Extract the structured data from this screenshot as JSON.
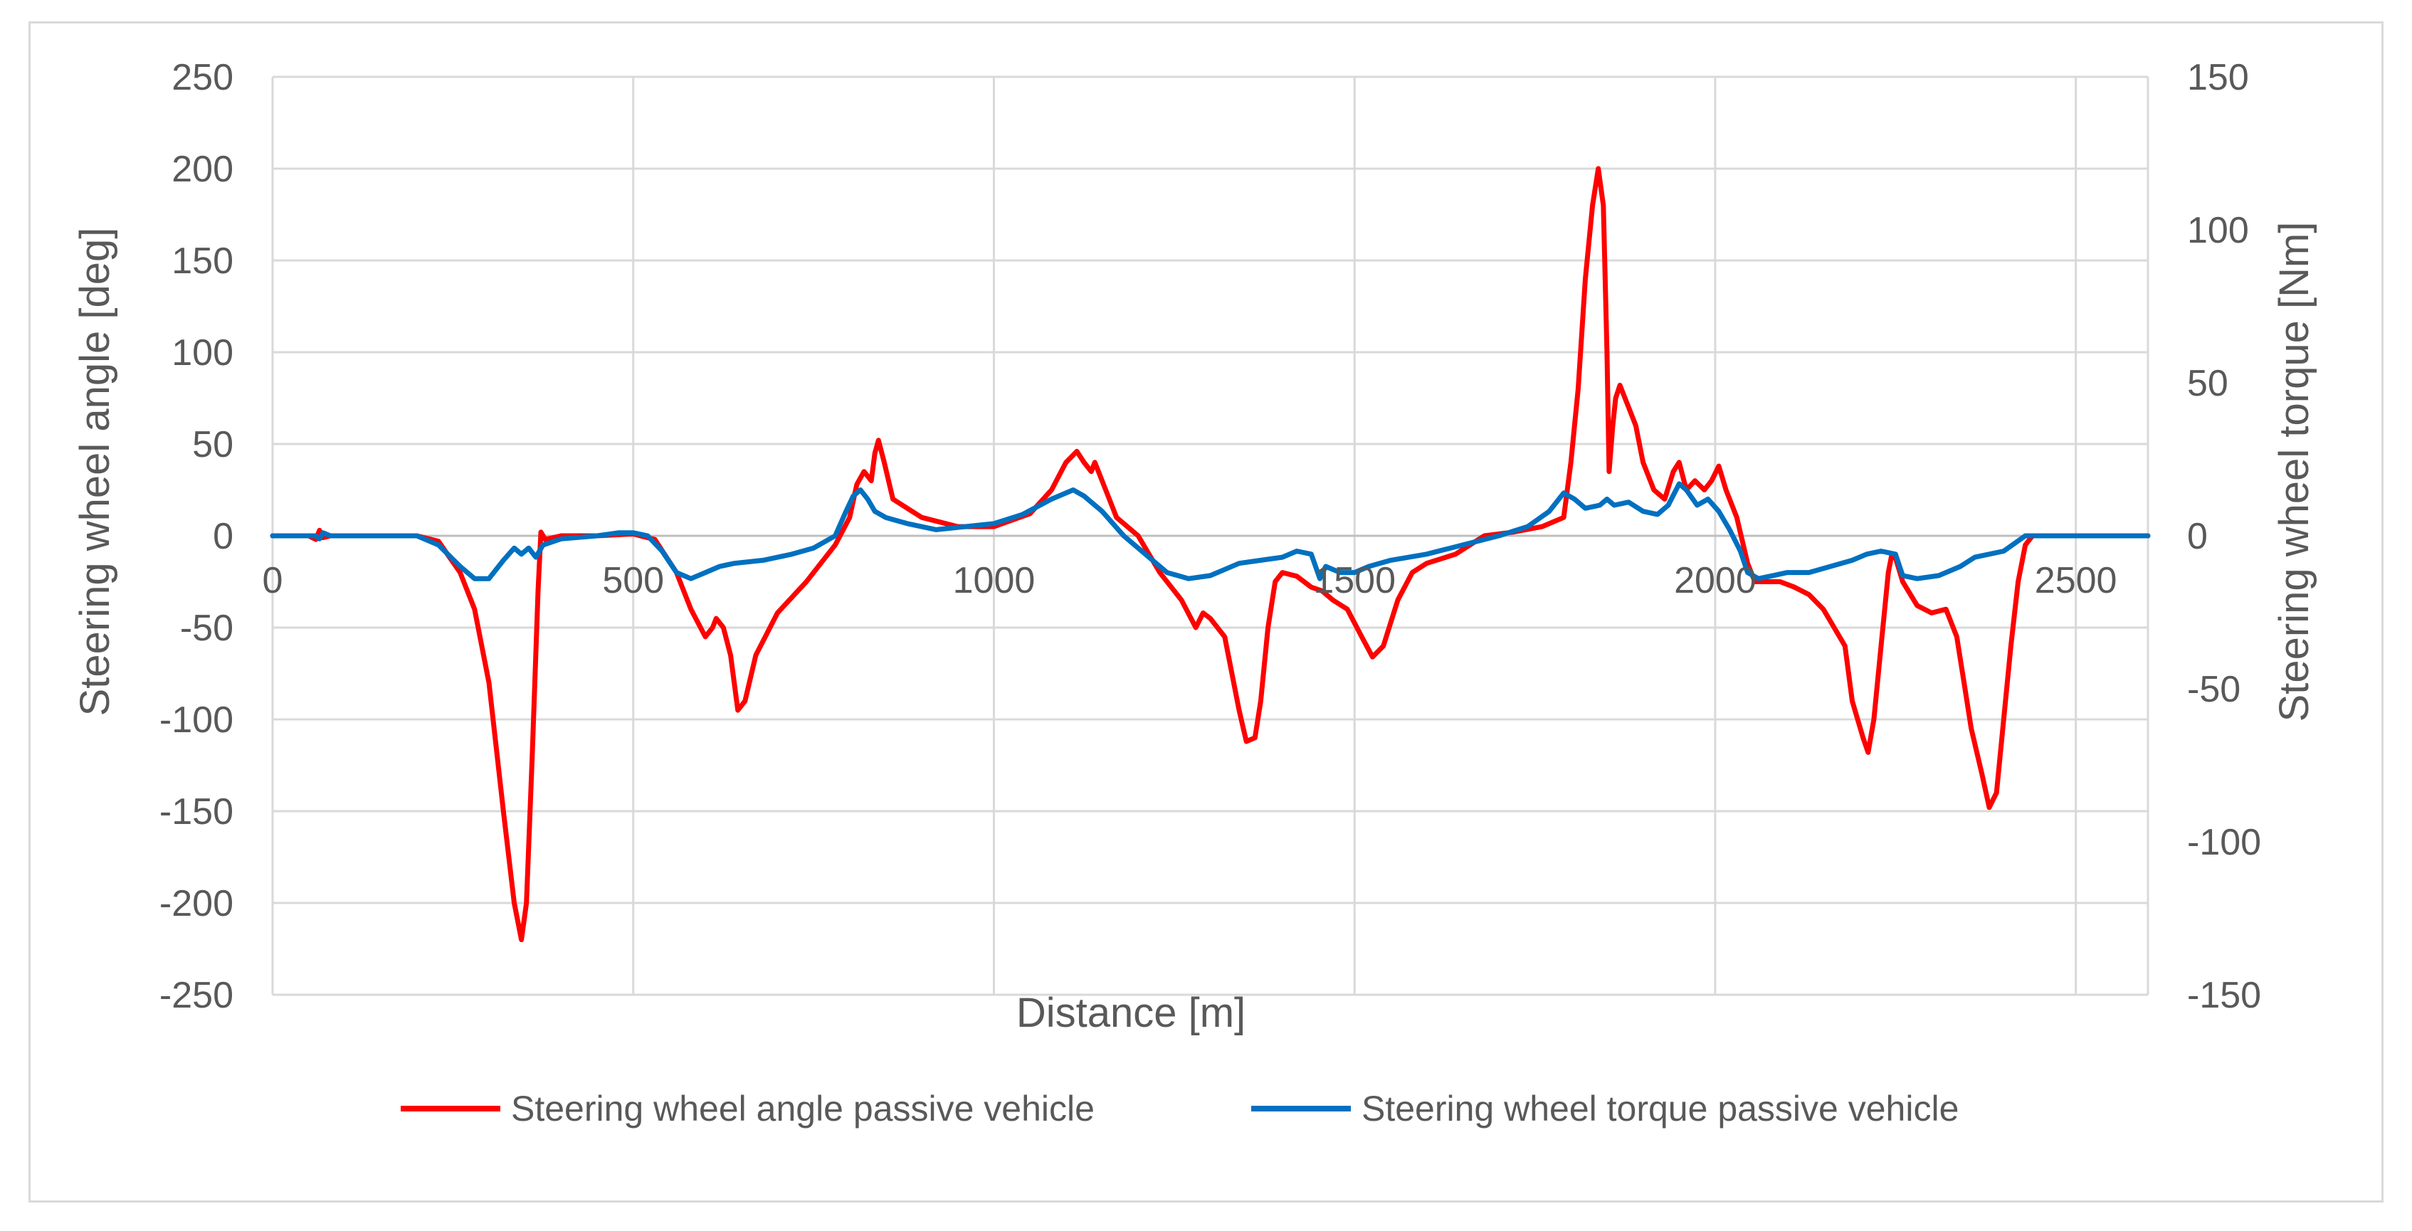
{
  "chart_data": {
    "type": "line",
    "title": "",
    "xlabel": "Distance [m]",
    "ylabel": "Steering wheel angle [deg]",
    "y2label": "Steering wheel torque [Nm]",
    "xlim": [
      0,
      2600
    ],
    "ylim": [
      -250,
      250
    ],
    "y2lim": [
      -150,
      150
    ],
    "x_ticks": [
      "0",
      "500",
      "1000",
      "1500",
      "2000",
      "2500"
    ],
    "y_ticks": [
      "250",
      "200",
      "150",
      "100",
      "50",
      "0",
      "-50",
      "-100",
      "-150",
      "-200",
      "-250"
    ],
    "y2_ticks": [
      "150",
      "100",
      "50",
      "0",
      "-50",
      "-100",
      "-150"
    ],
    "grid": true,
    "legend_position": "bottom",
    "series": [
      {
        "name": "Steering wheel angle passive vehicle",
        "axis": "left",
        "color": "#ff0000",
        "points": [
          [
            0,
            0
          ],
          [
            50,
            0
          ],
          [
            60,
            -2
          ],
          [
            65,
            3
          ],
          [
            70,
            -1
          ],
          [
            80,
            0
          ],
          [
            200,
            0
          ],
          [
            230,
            -3
          ],
          [
            260,
            -20
          ],
          [
            280,
            -40
          ],
          [
            300,
            -80
          ],
          [
            320,
            -150
          ],
          [
            335,
            -200
          ],
          [
            345,
            -220
          ],
          [
            352,
            -200
          ],
          [
            360,
            -120
          ],
          [
            368,
            -30
          ],
          [
            372,
            2
          ],
          [
            378,
            -2
          ],
          [
            400,
            0
          ],
          [
            450,
            0
          ],
          [
            500,
            1
          ],
          [
            530,
            -2
          ],
          [
            560,
            -20
          ],
          [
            580,
            -40
          ],
          [
            600,
            -55
          ],
          [
            610,
            -50
          ],
          [
            615,
            -45
          ],
          [
            625,
            -50
          ],
          [
            635,
            -65
          ],
          [
            645,
            -95
          ],
          [
            655,
            -90
          ],
          [
            670,
            -65
          ],
          [
            700,
            -42
          ],
          [
            740,
            -25
          ],
          [
            780,
            -5
          ],
          [
            800,
            10
          ],
          [
            810,
            28
          ],
          [
            820,
            35
          ],
          [
            830,
            30
          ],
          [
            835,
            45
          ],
          [
            840,
            52
          ],
          [
            848,
            40
          ],
          [
            860,
            20
          ],
          [
            880,
            15
          ],
          [
            900,
            10
          ],
          [
            950,
            5
          ],
          [
            1000,
            5
          ],
          [
            1050,
            12
          ],
          [
            1080,
            25
          ],
          [
            1100,
            40
          ],
          [
            1115,
            46
          ],
          [
            1125,
            40
          ],
          [
            1135,
            35
          ],
          [
            1140,
            40
          ],
          [
            1150,
            30
          ],
          [
            1170,
            10
          ],
          [
            1200,
            0
          ],
          [
            1230,
            -20
          ],
          [
            1260,
            -35
          ],
          [
            1280,
            -50
          ],
          [
            1290,
            -42
          ],
          [
            1300,
            -45
          ],
          [
            1320,
            -55
          ],
          [
            1330,
            -75
          ],
          [
            1340,
            -95
          ],
          [
            1350,
            -112
          ],
          [
            1362,
            -110
          ],
          [
            1370,
            -90
          ],
          [
            1380,
            -50
          ],
          [
            1390,
            -25
          ],
          [
            1400,
            -20
          ],
          [
            1420,
            -22
          ],
          [
            1440,
            -28
          ],
          [
            1455,
            -30
          ],
          [
            1470,
            -35
          ],
          [
            1490,
            -40
          ],
          [
            1510,
            -55
          ],
          [
            1525,
            -66
          ],
          [
            1540,
            -60
          ],
          [
            1560,
            -35
          ],
          [
            1580,
            -20
          ],
          [
            1600,
            -15
          ],
          [
            1640,
            -10
          ],
          [
            1680,
            0
          ],
          [
            1720,
            2
          ],
          [
            1760,
            5
          ],
          [
            1790,
            10
          ],
          [
            1800,
            40
          ],
          [
            1810,
            80
          ],
          [
            1820,
            140
          ],
          [
            1830,
            180
          ],
          [
            1838,
            200
          ],
          [
            1845,
            180
          ],
          [
            1850,
            100
          ],
          [
            1853,
            35
          ],
          [
            1858,
            60
          ],
          [
            1862,
            75
          ],
          [
            1868,
            82
          ],
          [
            1875,
            75
          ],
          [
            1880,
            70
          ],
          [
            1890,
            60
          ],
          [
            1900,
            40
          ],
          [
            1915,
            25
          ],
          [
            1930,
            20
          ],
          [
            1942,
            35
          ],
          [
            1950,
            40
          ],
          [
            1960,
            25
          ],
          [
            1972,
            30
          ],
          [
            1985,
            25
          ],
          [
            1995,
            30
          ],
          [
            2005,
            38
          ],
          [
            2015,
            25
          ],
          [
            2030,
            10
          ],
          [
            2045,
            -15
          ],
          [
            2055,
            -25
          ],
          [
            2075,
            -25
          ],
          [
            2090,
            -25
          ],
          [
            2110,
            -28
          ],
          [
            2130,
            -32
          ],
          [
            2150,
            -40
          ],
          [
            2165,
            -50
          ],
          [
            2180,
            -60
          ],
          [
            2190,
            -90
          ],
          [
            2205,
            -110
          ],
          [
            2212,
            -118
          ],
          [
            2220,
            -100
          ],
          [
            2230,
            -60
          ],
          [
            2240,
            -20
          ],
          [
            2245,
            -10
          ],
          [
            2250,
            -12
          ],
          [
            2260,
            -25
          ],
          [
            2280,
            -38
          ],
          [
            2300,
            -42
          ],
          [
            2320,
            -40
          ],
          [
            2335,
            -55
          ],
          [
            2345,
            -80
          ],
          [
            2355,
            -105
          ],
          [
            2370,
            -130
          ],
          [
            2380,
            -148
          ],
          [
            2390,
            -140
          ],
          [
            2400,
            -100
          ],
          [
            2410,
            -60
          ],
          [
            2420,
            -25
          ],
          [
            2430,
            -5
          ],
          [
            2440,
            0
          ],
          [
            2460,
            0
          ],
          [
            2600,
            0
          ]
        ]
      },
      {
        "name": "Steering wheel torque passive vehicle",
        "axis": "right",
        "color": "#0070c0",
        "points": [
          [
            0,
            0
          ],
          [
            60,
            0
          ],
          [
            65,
            -1
          ],
          [
            70,
            1
          ],
          [
            80,
            0
          ],
          [
            200,
            0
          ],
          [
            230,
            -3
          ],
          [
            260,
            -10
          ],
          [
            280,
            -14
          ],
          [
            300,
            -14
          ],
          [
            320,
            -8
          ],
          [
            335,
            -4
          ],
          [
            345,
            -6
          ],
          [
            355,
            -4
          ],
          [
            365,
            -7
          ],
          [
            375,
            -3
          ],
          [
            400,
            -1
          ],
          [
            450,
            0
          ],
          [
            480,
            1
          ],
          [
            500,
            1
          ],
          [
            520,
            0
          ],
          [
            540,
            -5
          ],
          [
            560,
            -12
          ],
          [
            580,
            -14
          ],
          [
            600,
            -12
          ],
          [
            620,
            -10
          ],
          [
            640,
            -9
          ],
          [
            680,
            -8
          ],
          [
            720,
            -6
          ],
          [
            750,
            -4
          ],
          [
            780,
            0
          ],
          [
            795,
            8
          ],
          [
            805,
            13
          ],
          [
            815,
            15
          ],
          [
            825,
            12
          ],
          [
            835,
            8
          ],
          [
            850,
            6
          ],
          [
            880,
            4
          ],
          [
            920,
            2
          ],
          [
            960,
            3
          ],
          [
            1000,
            4
          ],
          [
            1040,
            7
          ],
          [
            1080,
            12
          ],
          [
            1110,
            15
          ],
          [
            1125,
            13
          ],
          [
            1150,
            8
          ],
          [
            1180,
            0
          ],
          [
            1210,
            -6
          ],
          [
            1240,
            -12
          ],
          [
            1270,
            -14
          ],
          [
            1300,
            -13
          ],
          [
            1320,
            -11
          ],
          [
            1340,
            -9
          ],
          [
            1370,
            -8
          ],
          [
            1400,
            -7
          ],
          [
            1420,
            -5
          ],
          [
            1440,
            -6
          ],
          [
            1452,
            -14
          ],
          [
            1460,
            -10
          ],
          [
            1480,
            -12
          ],
          [
            1500,
            -12
          ],
          [
            1520,
            -10
          ],
          [
            1550,
            -8
          ],
          [
            1600,
            -6
          ],
          [
            1650,
            -3
          ],
          [
            1700,
            0
          ],
          [
            1740,
            3
          ],
          [
            1770,
            8
          ],
          [
            1790,
            14
          ],
          [
            1805,
            12
          ],
          [
            1820,
            9
          ],
          [
            1840,
            10
          ],
          [
            1850,
            12
          ],
          [
            1860,
            10
          ],
          [
            1880,
            11
          ],
          [
            1900,
            8
          ],
          [
            1920,
            7
          ],
          [
            1935,
            10
          ],
          [
            1950,
            17
          ],
          [
            1960,
            15
          ],
          [
            1975,
            10
          ],
          [
            1990,
            12
          ],
          [
            2005,
            8
          ],
          [
            2020,
            2
          ],
          [
            2035,
            -5
          ],
          [
            2045,
            -12
          ],
          [
            2060,
            -14
          ],
          [
            2080,
            -13
          ],
          [
            2100,
            -12
          ],
          [
            2130,
            -12
          ],
          [
            2160,
            -10
          ],
          [
            2190,
            -8
          ],
          [
            2210,
            -6
          ],
          [
            2230,
            -5
          ],
          [
            2250,
            -6
          ],
          [
            2260,
            -13
          ],
          [
            2280,
            -14
          ],
          [
            2310,
            -13
          ],
          [
            2340,
            -10
          ],
          [
            2360,
            -7
          ],
          [
            2380,
            -6
          ],
          [
            2400,
            -5
          ],
          [
            2430,
            0
          ],
          [
            2450,
            0
          ],
          [
            2600,
            0
          ]
        ]
      }
    ]
  }
}
